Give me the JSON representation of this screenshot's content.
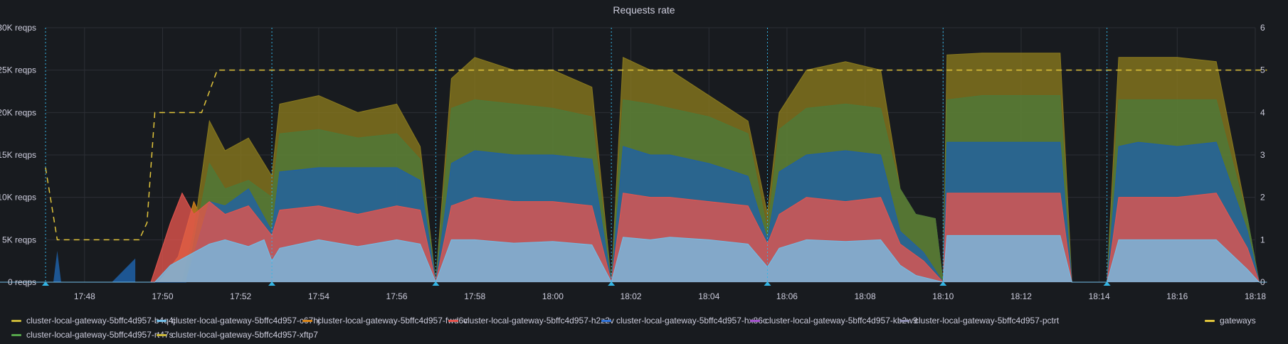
{
  "panel": {
    "title": "Requests rate"
  },
  "chart_data": {
    "type": "area",
    "stacked": true,
    "title": "Requests rate",
    "x_ticks": [
      "17:48",
      "17:50",
      "17:52",
      "17:54",
      "17:56",
      "17:58",
      "18:00",
      "18:02",
      "18:04",
      "18:06",
      "18:08",
      "18:10",
      "18:12",
      "18:14",
      "18:16",
      "18:18"
    ],
    "x_range": [
      "17:47",
      "18:18"
    ],
    "y_left": {
      "ticks": [
        "0 reqps",
        "5K reqps",
        "10K reqps",
        "15K reqps",
        "20K reqps",
        "25K reqps",
        "30K reqps"
      ],
      "range": [
        0,
        30000
      ],
      "unit": "reqps"
    },
    "y_right": {
      "ticks": [
        "0",
        "1",
        "2",
        "3",
        "4",
        "5",
        "6"
      ],
      "range": [
        0,
        6
      ]
    },
    "annotation_times": [
      "17:47",
      "17:52.8",
      "17:57",
      "18:01.5",
      "18:05.5",
      "18:10",
      "18:14.2"
    ],
    "series": [
      {
        "name": "cluster-local-gateway-5bffc4d957-c67hj",
        "color": "#73bfe8",
        "points": [
          [
            17.3,
            0
          ],
          [
            49.8,
            0
          ],
          [
            50.2,
            2000
          ],
          [
            50.8,
            3500
          ],
          [
            51.2,
            4500
          ],
          [
            51.6,
            5000
          ],
          [
            52.2,
            4200
          ],
          [
            52.6,
            5000
          ],
          [
            52.8,
            2500
          ],
          [
            53.0,
            4000
          ],
          [
            54.0,
            5000
          ],
          [
            55.0,
            4200
          ],
          [
            56.0,
            5000
          ],
          [
            56.6,
            4500
          ],
          [
            57.0,
            0
          ],
          [
            57.4,
            5000
          ],
          [
            58.0,
            5000
          ],
          [
            59.0,
            4600
          ],
          [
            60.0,
            4800
          ],
          [
            61.0,
            4400
          ],
          [
            61.5,
            0
          ],
          [
            61.8,
            5300
          ],
          [
            62.5,
            5000
          ],
          [
            63.0,
            5300
          ],
          [
            64.0,
            5000
          ],
          [
            65.0,
            4500
          ],
          [
            65.5,
            1800
          ],
          [
            65.8,
            4000
          ],
          [
            66.5,
            5000
          ],
          [
            67.5,
            4800
          ],
          [
            68.4,
            5000
          ],
          [
            68.9,
            2000
          ],
          [
            69.3,
            800
          ],
          [
            70.0,
            0
          ],
          [
            70.1,
            5500
          ],
          [
            71.0,
            5500
          ],
          [
            72.0,
            5500
          ],
          [
            73.0,
            5500
          ],
          [
            73.3,
            0
          ],
          [
            74.2,
            0
          ],
          [
            74.5,
            5000
          ],
          [
            75.0,
            5000
          ],
          [
            76.0,
            5000
          ],
          [
            77.0,
            5000
          ],
          [
            77.8,
            1500
          ],
          [
            78.1,
            0
          ],
          [
            78.3,
            0
          ]
        ]
      },
      {
        "name": "cluster-local-gateway-5bffc4d957-h2z2v",
        "color": "#e5544e",
        "points": [
          [
            17.3,
            0
          ],
          [
            49.7,
            0
          ],
          [
            50.2,
            7000
          ],
          [
            50.5,
            10500
          ],
          [
            50.8,
            8000
          ],
          [
            51.2,
            9500
          ],
          [
            51.6,
            8000
          ],
          [
            52.2,
            9000
          ],
          [
            52.8,
            5500
          ],
          [
            53.0,
            8500
          ],
          [
            54.0,
            9000
          ],
          [
            55.0,
            8000
          ],
          [
            56.0,
            9000
          ],
          [
            56.6,
            8500
          ],
          [
            57.0,
            0
          ],
          [
            57.4,
            9000
          ],
          [
            58.0,
            10000
          ],
          [
            59.0,
            9500
          ],
          [
            60.0,
            9500
          ],
          [
            61.0,
            9000
          ],
          [
            61.5,
            0
          ],
          [
            61.8,
            10500
          ],
          [
            62.5,
            10000
          ],
          [
            63.0,
            10000
          ],
          [
            64.0,
            9500
          ],
          [
            65.0,
            9000
          ],
          [
            65.5,
            4500
          ],
          [
            65.8,
            8000
          ],
          [
            66.5,
            10000
          ],
          [
            67.5,
            9500
          ],
          [
            68.4,
            10000
          ],
          [
            68.9,
            4500
          ],
          [
            69.5,
            2500
          ],
          [
            70.0,
            0
          ],
          [
            70.1,
            10500
          ],
          [
            71.0,
            10500
          ],
          [
            72.0,
            10500
          ],
          [
            73.0,
            10500
          ],
          [
            73.3,
            0
          ],
          [
            74.2,
            0
          ],
          [
            74.5,
            10000
          ],
          [
            75.0,
            10000
          ],
          [
            76.0,
            10000
          ],
          [
            77.0,
            10500
          ],
          [
            77.8,
            4000
          ],
          [
            78.1,
            0
          ],
          [
            78.3,
            0
          ]
        ]
      },
      {
        "name": "cluster-local-gateway-5bffc4d957-hx86c",
        "color": "#1f60a8",
        "points": [
          [
            17.3,
            0
          ],
          [
            50.6,
            0
          ],
          [
            51.2,
            9500
          ],
          [
            51.6,
            9000
          ],
          [
            52.2,
            11000
          ],
          [
            52.8,
            6000
          ],
          [
            53.0,
            13000
          ],
          [
            54.0,
            13500
          ],
          [
            55.0,
            13500
          ],
          [
            56.0,
            13500
          ],
          [
            56.6,
            12000
          ],
          [
            57.0,
            0
          ],
          [
            57.4,
            14000
          ],
          [
            58.0,
            15500
          ],
          [
            59.0,
            15000
          ],
          [
            60.0,
            15000
          ],
          [
            61.0,
            14500
          ],
          [
            61.5,
            0
          ],
          [
            61.8,
            16000
          ],
          [
            62.5,
            15000
          ],
          [
            63.0,
            15000
          ],
          [
            64.0,
            14000
          ],
          [
            65.0,
            12500
          ],
          [
            65.5,
            5000
          ],
          [
            65.8,
            13000
          ],
          [
            66.5,
            15000
          ],
          [
            67.5,
            15500
          ],
          [
            68.4,
            15000
          ],
          [
            68.9,
            6000
          ],
          [
            69.5,
            3500
          ],
          [
            70.0,
            0
          ],
          [
            70.1,
            16500
          ],
          [
            71.0,
            16500
          ],
          [
            72.0,
            16500
          ],
          [
            73.0,
            16500
          ],
          [
            73.3,
            0
          ],
          [
            74.2,
            0
          ],
          [
            74.5,
            16000
          ],
          [
            75.0,
            16500
          ],
          [
            76.0,
            16000
          ],
          [
            77.0,
            16500
          ],
          [
            77.8,
            6000
          ],
          [
            78.1,
            0
          ],
          [
            78.3,
            0
          ]
        ]
      },
      {
        "name": "cluster-local-gateway-5bffc4d957-rt47s",
        "color": "#4d7a3a",
        "points": [
          [
            17.3,
            0
          ],
          [
            50.6,
            0
          ],
          [
            51.2,
            14000
          ],
          [
            51.6,
            11000
          ],
          [
            52.2,
            12000
          ],
          [
            52.8,
            10000
          ],
          [
            53.0,
            17500
          ],
          [
            54.0,
            18000
          ],
          [
            55.0,
            17000
          ],
          [
            56.0,
            17500
          ],
          [
            56.6,
            14500
          ],
          [
            57.0,
            0
          ],
          [
            57.4,
            20500
          ],
          [
            58.0,
            21500
          ],
          [
            59.0,
            21000
          ],
          [
            60.0,
            20500
          ],
          [
            61.0,
            19500
          ],
          [
            61.5,
            0
          ],
          [
            61.8,
            21500
          ],
          [
            62.5,
            21000
          ],
          [
            63.0,
            20500
          ],
          [
            64.0,
            19500
          ],
          [
            65.0,
            17500
          ],
          [
            65.5,
            6000
          ],
          [
            65.8,
            18000
          ],
          [
            66.5,
            20500
          ],
          [
            67.5,
            21000
          ],
          [
            68.4,
            20500
          ],
          [
            68.9,
            11000
          ],
          [
            69.3,
            8000
          ],
          [
            69.8,
            7500
          ],
          [
            70.0,
            0
          ],
          [
            70.1,
            21500
          ],
          [
            71.0,
            22000
          ],
          [
            72.0,
            22000
          ],
          [
            73.0,
            22000
          ],
          [
            73.3,
            0
          ],
          [
            74.2,
            0
          ],
          [
            74.5,
            21500
          ],
          [
            75.0,
            21500
          ],
          [
            76.0,
            21500
          ],
          [
            77.0,
            21500
          ],
          [
            77.8,
            7500
          ],
          [
            78.1,
            0
          ],
          [
            78.3,
            0
          ]
        ]
      },
      {
        "name": "cluster-local-gateway-5bffc4d957-xftp7",
        "color": "#8a7a1e",
        "points": [
          [
            17.3,
            0
          ],
          [
            50.5,
            0
          ],
          [
            50.8,
            6000
          ],
          [
            51.2,
            19000
          ],
          [
            51.6,
            15500
          ],
          [
            52.2,
            17000
          ],
          [
            52.8,
            12500
          ],
          [
            53.0,
            21000
          ],
          [
            54.0,
            22000
          ],
          [
            55.0,
            20000
          ],
          [
            56.0,
            21000
          ],
          [
            56.6,
            16000
          ],
          [
            57.0,
            0
          ],
          [
            57.4,
            24000
          ],
          [
            58.0,
            26500
          ],
          [
            59.0,
            25000
          ],
          [
            60.0,
            25000
          ],
          [
            61.0,
            23000
          ],
          [
            61.5,
            0
          ],
          [
            61.8,
            26500
          ],
          [
            62.5,
            25000
          ],
          [
            63.0,
            25000
          ],
          [
            64.0,
            22000
          ],
          [
            65.0,
            19000
          ],
          [
            65.5,
            8000
          ],
          [
            65.8,
            20000
          ],
          [
            66.5,
            25000
          ],
          [
            67.5,
            26000
          ],
          [
            68.4,
            25000
          ],
          [
            68.9,
            11000
          ],
          [
            69.3,
            8000
          ],
          [
            69.8,
            7500
          ],
          [
            70.0,
            0
          ],
          [
            70.1,
            26800
          ],
          [
            71.0,
            27000
          ],
          [
            72.0,
            27000
          ],
          [
            73.0,
            27000
          ],
          [
            73.3,
            0
          ],
          [
            74.2,
            0
          ],
          [
            74.5,
            26500
          ],
          [
            75.0,
            26500
          ],
          [
            76.0,
            26500
          ],
          [
            77.0,
            26000
          ],
          [
            77.8,
            7500
          ],
          [
            78.1,
            0
          ],
          [
            78.3,
            0
          ]
        ]
      },
      {
        "name": "cluster-local-gateway-5bffc4d957-fwd6v",
        "color": "#d8861b",
        "points": [
          [
            49.9,
            0
          ],
          [
            50.4,
            3000
          ],
          [
            50.8,
            9500
          ],
          [
            51.1,
            6500
          ],
          [
            51.3,
            0
          ]
        ]
      },
      {
        "name": "cluster-local-gateway-5bffc4d957-b4q4j",
        "color": "#c8b638",
        "points": []
      },
      {
        "name": "cluster-local-gateway-5bffc4d957-kb2w9",
        "color": "#a352cc",
        "points": []
      },
      {
        "name": "cluster-local-gateway-5bffc4d957-pctrt",
        "color": "#8f8fb2",
        "points": []
      }
    ],
    "gateways": {
      "name": "gateways",
      "color": "#e0c43b",
      "axis": "right",
      "points": [
        [
          47.0,
          2.7
        ],
        [
          47.3,
          1.0
        ],
        [
          48.3,
          1.0
        ],
        [
          49.0,
          1.0
        ],
        [
          49.4,
          1.0
        ],
        [
          49.6,
          1.4
        ],
        [
          49.8,
          4.0
        ],
        [
          51.0,
          4.0
        ],
        [
          51.4,
          5.0
        ],
        [
          78.3,
          5.0
        ]
      ]
    },
    "early_blue_spikes": [
      [
        47.2,
        0
      ],
      [
        47.3,
        3700
      ],
      [
        47.4,
        0
      ],
      [
        48.7,
        0
      ],
      [
        49.3,
        2800
      ],
      [
        49.3,
        0
      ]
    ]
  },
  "legend": [
    {
      "name": "cluster-local-gateway-5bffc4d957-b4q4j",
      "color": "#c8b638"
    },
    {
      "name": "cluster-local-gateway-5bffc4d957-c67hj",
      "color": "#73bfe8"
    },
    {
      "name": "cluster-local-gateway-5bffc4d957-fwd6v",
      "color": "#d8861b"
    },
    {
      "name": "cluster-local-gateway-5bffc4d957-h2z2v",
      "color": "#e5544e"
    },
    {
      "name": "cluster-local-gateway-5bffc4d957-hx86c",
      "color": "#3274d9"
    },
    {
      "name": "cluster-local-gateway-5bffc4d957-kb2w9",
      "color": "#a352cc"
    },
    {
      "name": "cluster-local-gateway-5bffc4d957-pctrt",
      "color": "#8f8fb2"
    },
    {
      "name": "gateways",
      "color": "#e0c43b"
    },
    {
      "name": "cluster-local-gateway-5bffc4d957-rt47s",
      "color": "#56a64b"
    },
    {
      "name": "cluster-local-gateway-5bffc4d957-xftp7",
      "color": "#c8b638"
    }
  ]
}
